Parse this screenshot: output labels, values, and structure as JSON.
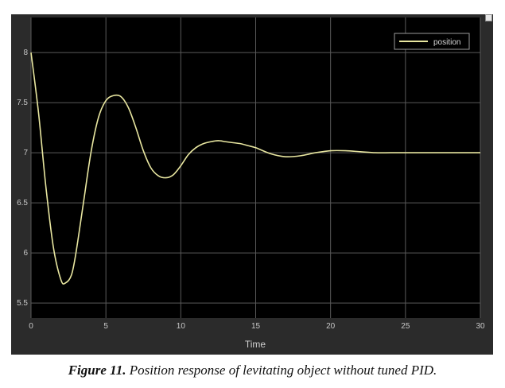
{
  "chart_data": {
    "type": "line",
    "title": "",
    "xlabel": "Time",
    "ylabel": "",
    "xlim": [
      0,
      30
    ],
    "ylim": [
      5.35,
      8.35
    ],
    "xticks": [
      0,
      5,
      10,
      15,
      20,
      25,
      30
    ],
    "yticks": [
      5.5,
      6,
      6.5,
      7,
      7.5,
      8
    ],
    "ytick_labels": [
      "5.5",
      "6",
      "6.5",
      "7",
      "7.5",
      "8"
    ],
    "grid": true,
    "legend": "top-right",
    "background": "#000000",
    "grid_color": "#5a5a5a",
    "series": [
      {
        "name": "position",
        "color": "#e8e6a0",
        "x": [
          0,
          0.5,
          1,
          1.5,
          2,
          2.3,
          2.7,
          3,
          3.5,
          4,
          4.5,
          5,
          5.5,
          6,
          6.5,
          7,
          7.5,
          8,
          8.5,
          9,
          9.5,
          10,
          10.5,
          11,
          11.5,
          12,
          12.5,
          13,
          13.5,
          14,
          14.5,
          15,
          16,
          17,
          18,
          19,
          20,
          21,
          22,
          23,
          24,
          25,
          26,
          27,
          28,
          29,
          30
        ],
        "values": [
          8.0,
          7.4,
          6.65,
          6.05,
          5.73,
          5.7,
          5.78,
          6.0,
          6.5,
          7.0,
          7.35,
          7.52,
          7.57,
          7.56,
          7.45,
          7.25,
          7.02,
          6.85,
          6.77,
          6.75,
          6.78,
          6.87,
          6.98,
          7.05,
          7.09,
          7.11,
          7.12,
          7.11,
          7.1,
          7.09,
          7.07,
          7.05,
          6.99,
          6.96,
          6.97,
          7.0,
          7.02,
          7.02,
          7.01,
          7.0,
          7.0,
          7.0,
          7.0,
          7.0,
          7.0,
          7.0,
          7.0
        ]
      }
    ]
  },
  "caption": {
    "label": "Figure 11.",
    "text": " Position response of levitating object without tuned PID."
  }
}
